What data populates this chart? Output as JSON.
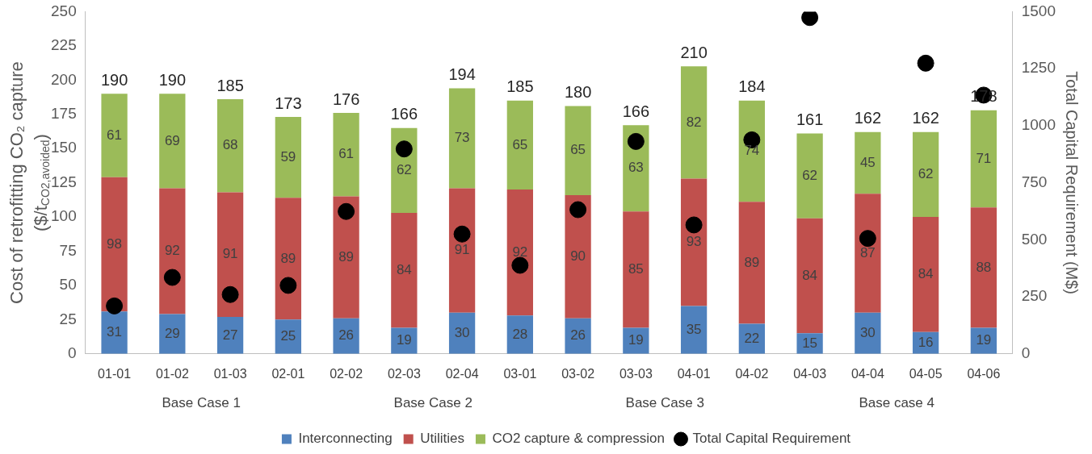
{
  "chart_data": {
    "type": "bar",
    "stacked": true,
    "ylabel": "Cost of retrofitting CO₂ capture\n($/t$_{CO2,avoided}$)",
    "y2label": "Total Capital Requirement (M$)",
    "categories": [
      "01-01",
      "01-02",
      "01-03",
      "02-01",
      "02-02",
      "02-03",
      "02-04",
      "03-01",
      "03-02",
      "03-03",
      "04-01",
      "04-02",
      "04-03",
      "04-04",
      "04-05",
      "04-06"
    ],
    "series": [
      {
        "name": "Interconnecting",
        "color": "#4f81bd",
        "values": [
          31,
          29,
          27,
          25,
          26,
          19,
          30,
          28,
          26,
          19,
          35,
          22,
          15,
          30,
          16,
          19
        ],
        "value_labels": [
          "31",
          "29",
          "27",
          "25",
          "26",
          "19",
          "30",
          "28",
          "26",
          "19",
          "35",
          "22",
          "15",
          "30",
          "16",
          "19"
        ]
      },
      {
        "name": "Utilities",
        "color": "#c0504d",
        "values": [
          98,
          92,
          91,
          89,
          89,
          84,
          91,
          92,
          90,
          85,
          93,
          89,
          84,
          87,
          84,
          88
        ],
        "value_labels": [
          "98",
          "92",
          "91",
          "89",
          "89",
          "84",
          "91",
          "92",
          "90",
          "85",
          "93",
          "89",
          "84",
          "87",
          "84",
          "88"
        ]
      },
      {
        "name": "CO2 capture & compression",
        "color": "#9bbb59",
        "values": [
          61,
          69,
          68,
          59,
          61,
          62,
          73,
          65,
          65,
          63,
          82,
          74,
          62,
          45,
          62,
          71
        ],
        "value_labels": [
          "61",
          "69",
          "68",
          "59",
          "61",
          "62",
          "73",
          "65",
          "65",
          "63",
          "82",
          "74",
          "62",
          "45",
          "62",
          "71"
        ]
      },
      {
        "name": "Total Capital Requirement",
        "type": "scatter",
        "axis": "y2",
        "marker": "circle",
        "color": "#000000",
        "x": [
          "01-01",
          "01-02",
          "01-03",
          "02-01",
          "02-02",
          "02-03",
          "02-04",
          "03-01",
          "03-02",
          "03-03",
          "04-01",
          "04-02",
          "04-03",
          "04-04",
          "04-05",
          "04-06"
        ],
        "values": [
          210,
          335,
          260,
          300,
          624,
          898,
          525,
          388,
          632,
          931,
          565,
          938,
          1474,
          506,
          1274,
          1134
        ]
      }
    ],
    "totals": [
      "190",
      "190",
      "185",
      "173",
      "176",
      "166",
      "194",
      "185",
      "180",
      "166",
      "210",
      "184",
      "161",
      "162",
      "162",
      "178"
    ],
    "ylim": [
      0,
      250
    ],
    "yticks": [
      0,
      25,
      50,
      75,
      100,
      125,
      150,
      175,
      200,
      225,
      250
    ],
    "y2lim": [
      0,
      1500
    ],
    "y2ticks": [
      0,
      250,
      500,
      750,
      1000,
      1250,
      1500
    ],
    "annotations": [
      "Base Case 1",
      "Base Case 2",
      "Base Case 3",
      "Base case 4"
    ],
    "legend": "bottom"
  }
}
